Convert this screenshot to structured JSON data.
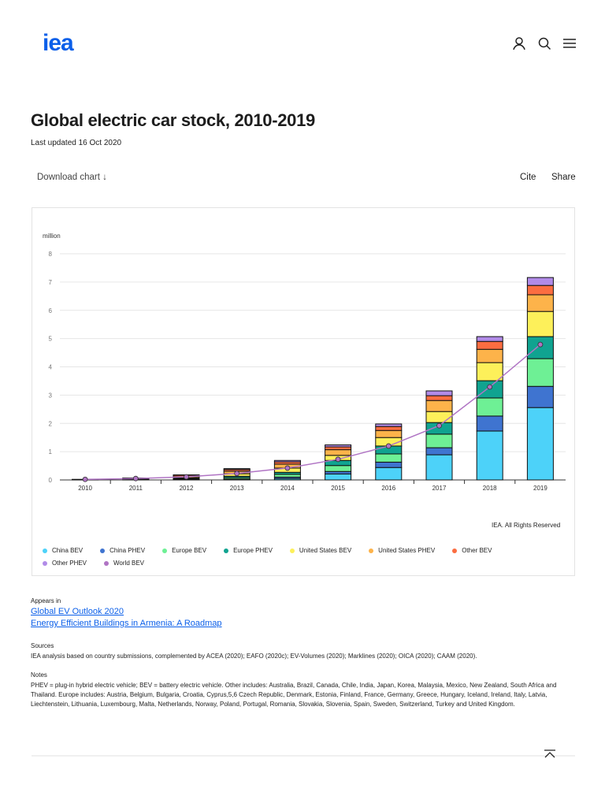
{
  "header": {
    "logo": "iea",
    "icons": [
      "user-icon",
      "search-icon",
      "menu-icon"
    ]
  },
  "title": "Global electric car stock, 2010-2019",
  "updated": "Last updated 16 Oct 2020",
  "toolbar": {
    "download": "Download chart ↓",
    "cite": "Cite",
    "share": "Share"
  },
  "copyright": "IEA. All Rights Reserved",
  "chart_data": {
    "type": "bar",
    "stacked": true,
    "ylabel": "million",
    "ylim": [
      0,
      8
    ],
    "yticks": [
      0,
      1,
      2,
      3,
      4,
      5,
      6,
      7,
      8
    ],
    "grid": true,
    "legend_position": "bottom",
    "categories": [
      "2010",
      "2011",
      "2012",
      "2013",
      "2014",
      "2015",
      "2016",
      "2017",
      "2018",
      "2019"
    ],
    "series": [
      {
        "name": "China BEV",
        "color": "#4dd2f9",
        "values": [
          0.002,
          0.005,
          0.01,
          0.02,
          0.05,
          0.21,
          0.44,
          0.89,
          1.73,
          2.56
        ]
      },
      {
        "name": "China PHEV",
        "color": "#3f74d0",
        "values": [
          0,
          0,
          0.005,
          0.01,
          0.05,
          0.09,
          0.19,
          0.25,
          0.53,
          0.75
        ]
      },
      {
        "name": "Europe BEV",
        "color": "#6ef095",
        "values": [
          0.003,
          0.01,
          0.02,
          0.05,
          0.1,
          0.21,
          0.29,
          0.48,
          0.64,
          0.98
        ]
      },
      {
        "name": "Europe PHEV",
        "color": "#10a390",
        "values": [
          0,
          0,
          0.01,
          0.05,
          0.07,
          0.18,
          0.28,
          0.41,
          0.61,
          0.78
        ]
      },
      {
        "name": "United States BEV",
        "color": "#fdf05a",
        "values": [
          0.002,
          0.01,
          0.03,
          0.09,
          0.15,
          0.18,
          0.3,
          0.39,
          0.64,
          0.89
        ]
      },
      {
        "name": "United States PHEV",
        "color": "#fdb34a",
        "values": [
          0,
          0.01,
          0.04,
          0.09,
          0.14,
          0.2,
          0.25,
          0.39,
          0.47,
          0.59
        ]
      },
      {
        "name": "Other BEV",
        "color": "#fb6d41",
        "values": [
          0.01,
          0.025,
          0.05,
          0.06,
          0.08,
          0.1,
          0.14,
          0.17,
          0.28,
          0.33
        ]
      },
      {
        "name": "Other PHEV",
        "color": "#b18be8",
        "values": [
          0.003,
          0.01,
          0.015,
          0.03,
          0.05,
          0.07,
          0.09,
          0.17,
          0.17,
          0.28
        ]
      }
    ],
    "line_series": {
      "name": "World BEV",
      "color": "#b074c4",
      "values": [
        0.02,
        0.05,
        0.11,
        0.23,
        0.42,
        0.73,
        1.2,
        1.92,
        3.29,
        4.79
      ]
    }
  },
  "appears": {
    "label": "Appears in",
    "links": [
      "Global EV Outlook 2020",
      "Energy Efficient Buildings in Armenia: A Roadmap"
    ]
  },
  "sources": {
    "label": "Sources",
    "text": "IEA analysis based on country submissions, complemented by ACEA (2020); EAFO (2020c); EV-Volumes (2020); Marklines (2020); OICA (2020); CAAM (2020)."
  },
  "notes": {
    "label": "Notes",
    "text": "PHEV = plug-in hybrid electric vehicle; BEV = battery electric vehicle. Other includes: Australia, Brazil, Canada, Chile, India, Japan, Korea, Malaysia, Mexico, New Zealand, South Africa and Thailand. Europe includes: Austria, Belgium, Bulgaria, Croatia, Cyprus,5,6 Czech Republic, Denmark, Estonia, Finland, France, Germany, Greece, Hungary, Iceland, Ireland, Italy, Latvia, Liechtenstein, Lithuania, Luxembourg, Malta, Netherlands, Norway, Poland, Portugal, Romania, Slovakia, Slovenia, Spain, Sweden, Switzerland, Turkey and United Kingdom."
  }
}
